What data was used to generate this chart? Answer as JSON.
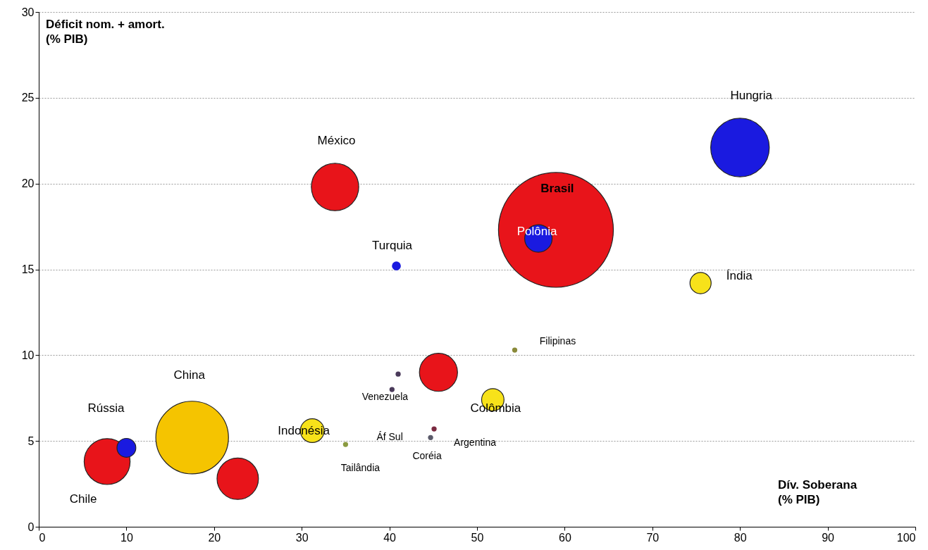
{
  "chart_data": {
    "type": "bubble",
    "xlabel": "Dív. Soberana\n(% PIB)",
    "ylabel": "Déficit nom. + amort.\n(% PIB)",
    "x": [
      59,
      17.5,
      80,
      33.8,
      7.8,
      22.7,
      45.6,
      57,
      31.2,
      51.8,
      75.5,
      10,
      40.8,
      54.3,
      41,
      40.3,
      45.1,
      44.7,
      35
    ],
    "values": [
      17.3,
      5.2,
      22.1,
      19.8,
      3.8,
      2.8,
      9.0,
      16.8,
      5.6,
      7.4,
      14.2,
      4.6,
      15.2,
      10.3,
      8.9,
      8.0,
      5.7,
      5.2,
      4.8
    ],
    "sizes": [
      1,
      0.4,
      0.26,
      0.17,
      0.16,
      0.13,
      0.11,
      0.057,
      0.043,
      0.038,
      0.034,
      0.027,
      0.006,
      0.002,
      0.002,
      0.002,
      0.002,
      0.002,
      0.002
    ],
    "colors": [
      "#e8141a",
      "#f5c400",
      "#1a1ae0",
      "#e8141a",
      "#e8141a",
      "#e8141a",
      "#e8141a",
      "#1a1ae0",
      "#f7e21a",
      "#f7e21a",
      "#f7e21a",
      "#1a1ae0",
      "#1a1ae0",
      "#8a8a3a",
      "#4a3a5a",
      "#4a3a5a",
      "#7a2a40",
      "#5a5a6a",
      "#8a9a40"
    ],
    "annotations": [
      "Brasil",
      "Polônia",
      "Hungria",
      "México",
      "Turquia",
      "Índia",
      "Filipinas",
      "Venezuela",
      "Colômbia",
      "China",
      "Rússia",
      "Indonésia",
      "Áf Sul",
      "Argentina",
      "Coréia",
      "Tailândia",
      "Chile"
    ],
    "xlim": [
      0,
      100
    ],
    "xticks": [
      0,
      10,
      20,
      30,
      40,
      50,
      60,
      70,
      80,
      90,
      100
    ],
    "ylim": [
      0,
      30
    ],
    "yticks": [
      0,
      5,
      10,
      15,
      20,
      25,
      30
    ],
    "grid": "y"
  }
}
